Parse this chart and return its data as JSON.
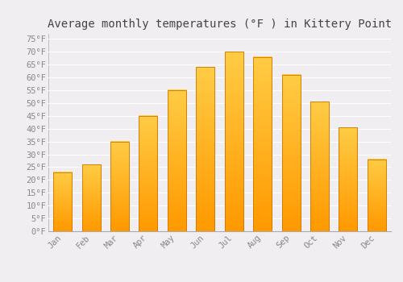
{
  "title": "Average monthly temperatures (°F ) in Kittery Point",
  "months": [
    "Jan",
    "Feb",
    "Mar",
    "Apr",
    "May",
    "Jun",
    "Jul",
    "Aug",
    "Sep",
    "Oct",
    "Nov",
    "Dec"
  ],
  "values": [
    23,
    26,
    35,
    45,
    55,
    64,
    70,
    68,
    61,
    50.5,
    40.5,
    28
  ],
  "bar_color_top": "#FFCC44",
  "bar_color_bottom": "#FF9900",
  "bar_edge_color": "#CC7700",
  "background_color": "#F0EEF0",
  "grid_color": "#FFFFFF",
  "ylim": [
    0,
    77
  ],
  "yticks": [
    0,
    5,
    10,
    15,
    20,
    25,
    30,
    35,
    40,
    45,
    50,
    55,
    60,
    65,
    70,
    75
  ],
  "title_fontsize": 10,
  "tick_fontsize": 7.5,
  "font_family": "monospace",
  "tick_color": "#888888",
  "title_color": "#444444"
}
